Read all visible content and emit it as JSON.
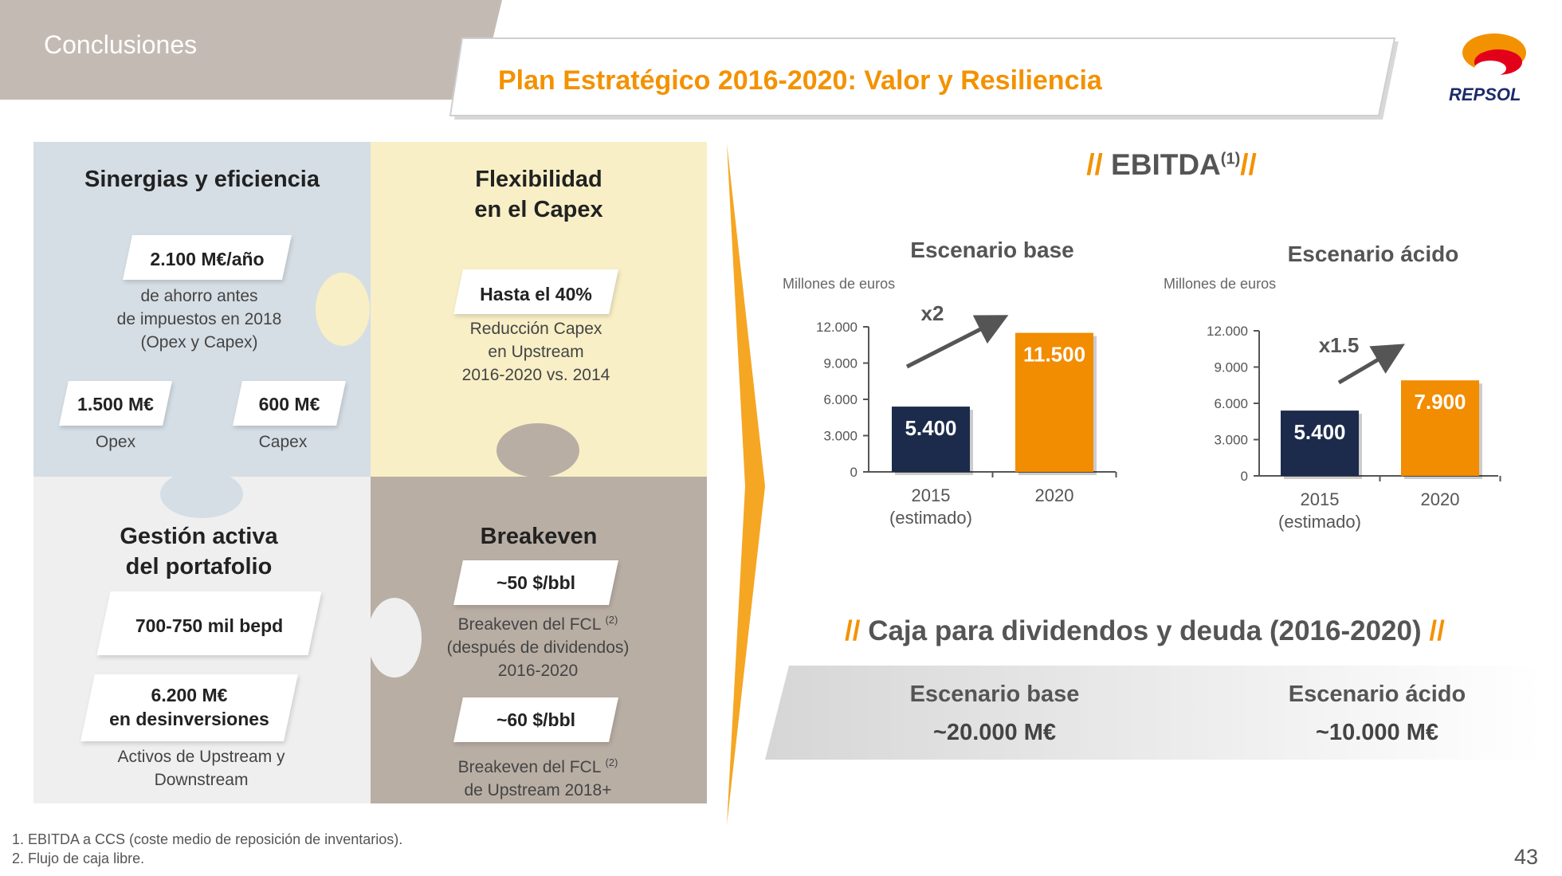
{
  "header": {
    "section": "Conclusiones",
    "title": "Plan Estratégico 2016-2020: Valor y Resiliencia",
    "logo": "REPSOL"
  },
  "quadrants": [
    {
      "title": "Sinergias y eficiencia",
      "badge": "2.100 M€/año",
      "text": "de ahorro antes\nde impuestos en 2018\n(Opex y Capex)",
      "items": [
        {
          "badge": "1.500 M€",
          "label": "Opex"
        },
        {
          "badge": "600 M€",
          "label": "Capex"
        }
      ]
    },
    {
      "title": "Flexibilidad\nen el Capex",
      "badge": "Hasta el 40%",
      "text": "Reducción Capex\nen Upstream\n2016-2020 vs. 2014"
    },
    {
      "title": "Gestión activa\ndel portafolio",
      "badge": "700-750 mil bepd",
      "badge2": "6.200 M€\nen desinversiones",
      "text": "Activos de Upstream y\nDownstream"
    },
    {
      "title": "Breakeven",
      "items": [
        {
          "badge": "~50 $/bbl",
          "text": "Breakeven del FCL",
          "ref": "(2)",
          "rest": "(después de dividendos)\n2016-2020"
        },
        {
          "badge": "~60 $/bbl",
          "text": "Breakeven del FCL",
          "ref": "(2)",
          "rest": "de Upstream 2018+"
        }
      ]
    }
  ],
  "ebitda_heading": {
    "prefix": "//",
    "title": "EBITDA",
    "ref": "(1)",
    "suffix": "//"
  },
  "chart_data": [
    {
      "type": "bar",
      "title": "Escenario base",
      "y_label": "Millones de euros",
      "categories": [
        "2015\n(estimado)",
        "2020"
      ],
      "values": [
        5400,
        11500
      ],
      "value_labels": [
        "5.400",
        "11.500"
      ],
      "colors": [
        "#1c2b4b",
        "#f28c00"
      ],
      "annotation": "x2",
      "ylim": [
        0,
        12000
      ],
      "yticks": [
        {
          "value": 0,
          "label": "0"
        },
        {
          "value": 3000,
          "label": "3.000"
        },
        {
          "value": 6000,
          "label": "6.000"
        },
        {
          "value": 9000,
          "label": "9.000"
        },
        {
          "value": 12000,
          "label": "12.000"
        }
      ]
    },
    {
      "type": "bar",
      "title": "Escenario ácido",
      "y_label": "Millones de euros",
      "categories": [
        "2015\n(estimado)",
        "2020"
      ],
      "values": [
        5400,
        7900
      ],
      "value_labels": [
        "5.400",
        "7.900"
      ],
      "colors": [
        "#1c2b4b",
        "#f28c00"
      ],
      "annotation": "x1.5",
      "ylim": [
        0,
        12000
      ],
      "yticks": [
        {
          "value": 0,
          "label": "0"
        },
        {
          "value": 3000,
          "label": "3.000"
        },
        {
          "value": 6000,
          "label": "6.000"
        },
        {
          "value": 9000,
          "label": "9.000"
        },
        {
          "value": 12000,
          "label": "12.000"
        }
      ]
    }
  ],
  "cash": {
    "prefix": "//",
    "title": "Caja para dividendos y deuda (2016-2020)",
    "suffix": "//",
    "scenarios": [
      {
        "name": "Escenario base",
        "value": "~20.000 M€"
      },
      {
        "name": "Escenario ácido",
        "value": "~10.000 M€"
      }
    ]
  },
  "footnotes": [
    "1. EBITDA a CCS (coste medio de reposición de inventarios).",
    "2. Flujo de caja libre."
  ],
  "page_number": "43"
}
